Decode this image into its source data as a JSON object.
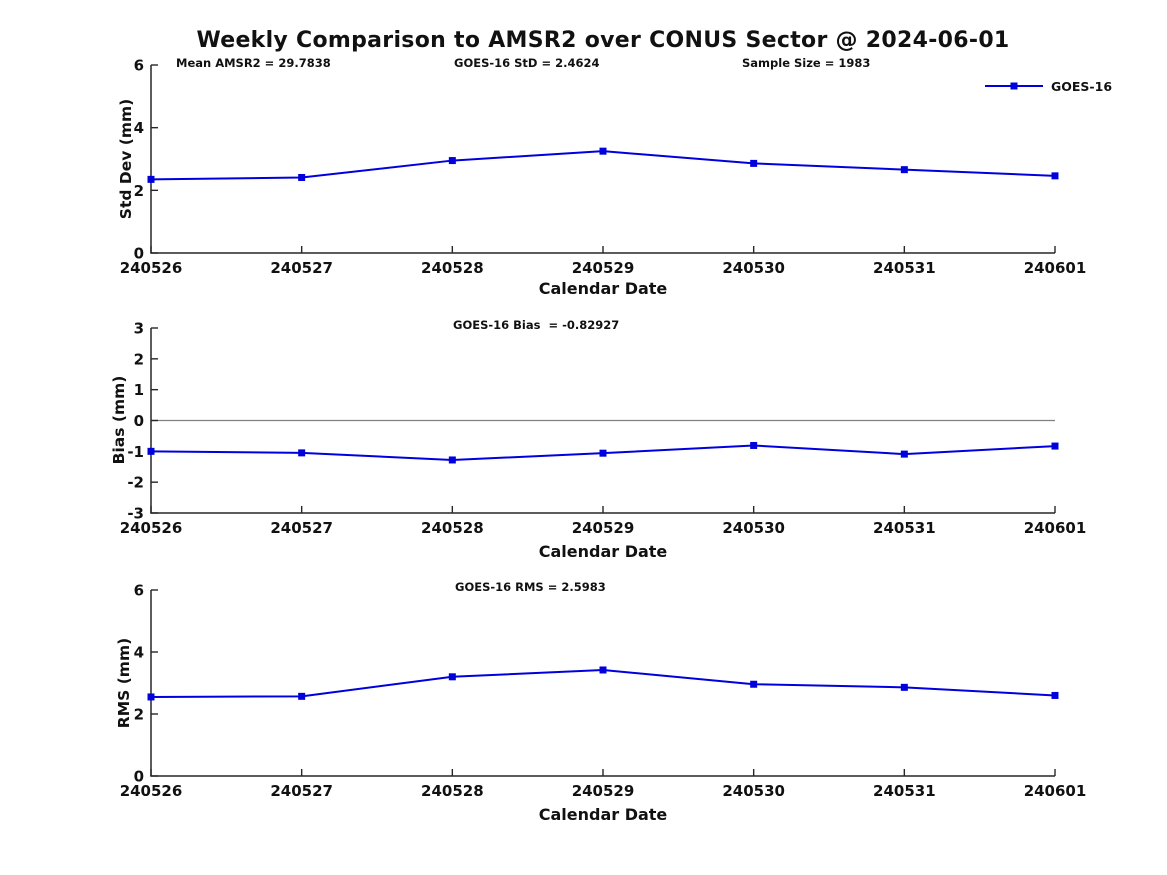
{
  "title": "Weekly Comparison to AMSR2 over CONUS Sector @ 2024-06-01",
  "legend": {
    "label": "GOES-16"
  },
  "colors": {
    "series": "#0000dd",
    "zero_line": "#808080",
    "axis": "#262626",
    "text": "#111111"
  },
  "chart_data": [
    {
      "type": "line",
      "id": "std-dev",
      "ylabel": "Std Dev (mm)",
      "xlabel": "Calendar Date",
      "ylim": [
        0,
        6
      ],
      "yticks": [
        0,
        2,
        4,
        6
      ],
      "grid": false,
      "legend_position": "top-right-outside",
      "categories": [
        "240526",
        "240527",
        "240528",
        "240529",
        "240530",
        "240531",
        "240601"
      ],
      "series": [
        {
          "name": "GOES-16",
          "values": [
            2.35,
            2.41,
            2.95,
            3.25,
            2.86,
            2.66,
            2.4624
          ]
        }
      ],
      "annotations": [
        {
          "text": "Mean AMSR2 = 29.7838"
        },
        {
          "text": "GOES-16 StD = 2.4624"
        },
        {
          "text": "Sample Size = 1983"
        }
      ]
    },
    {
      "type": "line",
      "id": "bias",
      "ylabel": "Bias (mm)",
      "xlabel": "Calendar Date",
      "ylim": [
        -3,
        3
      ],
      "yticks": [
        -3,
        -2,
        -1,
        0,
        1,
        2,
        3
      ],
      "zero_line": true,
      "grid": false,
      "categories": [
        "240526",
        "240527",
        "240528",
        "240529",
        "240530",
        "240531",
        "240601"
      ],
      "series": [
        {
          "name": "GOES-16",
          "values": [
            -1.0,
            -1.05,
            -1.28,
            -1.06,
            -0.81,
            -1.09,
            -0.82927
          ]
        }
      ],
      "annotations": [
        {
          "text": "GOES-16 Bias  = -0.82927"
        }
      ]
    },
    {
      "type": "line",
      "id": "rms",
      "ylabel": "RMS (mm)",
      "xlabel": "Calendar Date",
      "ylim": [
        0,
        6
      ],
      "yticks": [
        0,
        2,
        4,
        6
      ],
      "grid": false,
      "categories": [
        "240526",
        "240527",
        "240528",
        "240529",
        "240530",
        "240531",
        "240601"
      ],
      "series": [
        {
          "name": "GOES-16",
          "values": [
            2.55,
            2.57,
            3.2,
            3.42,
            2.96,
            2.86,
            2.5983
          ]
        }
      ],
      "annotations": [
        {
          "text": "GOES-16 RMS = 2.5983"
        }
      ]
    }
  ]
}
